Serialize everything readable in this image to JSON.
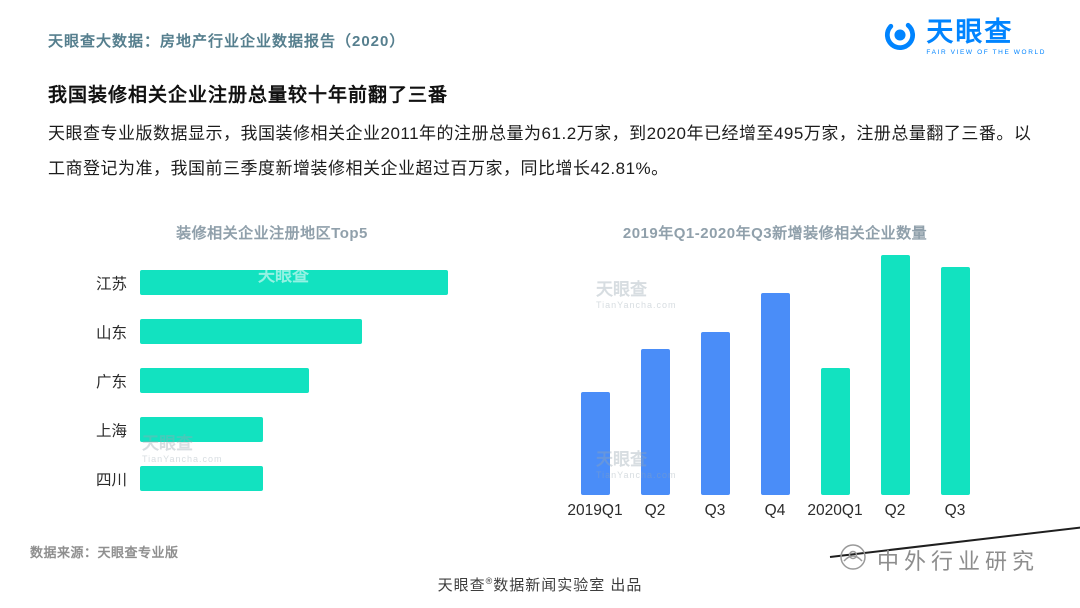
{
  "page": {
    "breadcrumb": "天眼查大数据：房地产行业企业数据报告（2020）",
    "title": "我国装修相关企业注册总量较十年前翻了三番",
    "paragraph": "天眼查专业版数据显示，我国装修相关企业2011年的注册总量为61.2万家，到2020年已经增至495万家，注册总量翻了三番。以工商登记为准，我国前三季度新增装修相关企业超过百万家，同比增长42.81%。"
  },
  "logo": {
    "text": "天眼查",
    "tagline": "FAIR VIEW OF THE WORLD"
  },
  "footer": {
    "source": "数据来源：天眼查专业版",
    "credit_brand": "天眼查",
    "credit_reg": "®",
    "credit_rest": "数据新闻实验室 出品"
  },
  "watermarks": {
    "chart": "天眼查",
    "chart_sub": "TianYancha.com",
    "bottom_right": "中外行业研究"
  },
  "colors": {
    "brand_blue": "#0084FF",
    "teal_bar": "#12E2C0",
    "blue_bar": "#4A8DF8",
    "breadcrumb_teal": "#567F8E",
    "chart_title_grey": "#90A0AB"
  },
  "chart_data": [
    {
      "type": "bar",
      "orientation": "horizontal",
      "title": "装修相关企业注册地区Top5",
      "categories": [
        "江苏",
        "山东",
        "广东",
        "上海",
        "四川"
      ],
      "values": [
        100,
        72,
        55,
        40,
        40
      ],
      "value_note": "relative bar lengths estimated from pixels; no numeric axis or data labels shown",
      "bar_color": "#12E2C0",
      "grid": false,
      "legend": "none"
    },
    {
      "type": "bar",
      "orientation": "vertical",
      "title": "2019年Q1-2020年Q3新增装修相关企业数量",
      "categories": [
        "2019Q1",
        "Q2",
        "Q3",
        "Q4",
        "2020Q1",
        "Q2",
        "Q3"
      ],
      "values": [
        43,
        61,
        68,
        84,
        53,
        100,
        95
      ],
      "value_note": "relative bar heights estimated from pixels; no numeric axis or data labels shown",
      "bar_colors": [
        "#4A8DF8",
        "#4A8DF8",
        "#4A8DF8",
        "#4A8DF8",
        "#12E2C0",
        "#12E2C0",
        "#12E2C0"
      ],
      "grid": false,
      "legend": "none"
    }
  ]
}
